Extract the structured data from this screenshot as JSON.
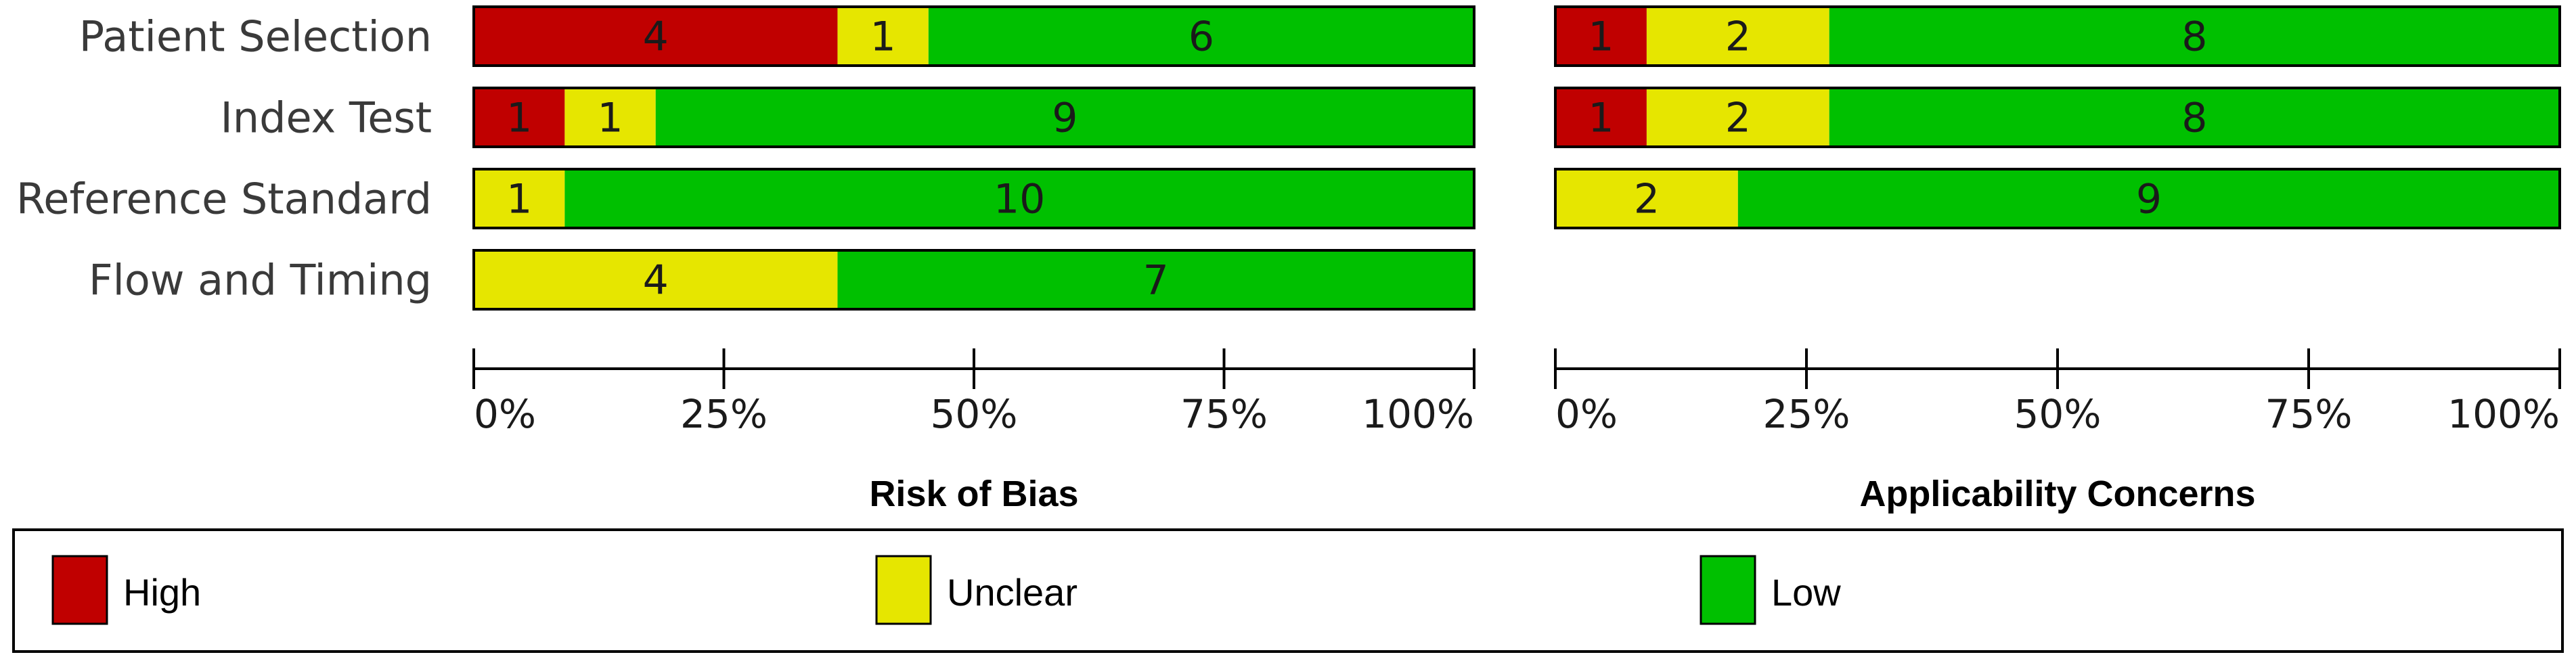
{
  "chart_data": {
    "type": "bar",
    "stacked": true,
    "orientation": "horizontal",
    "categories": [
      "Patient Selection",
      "Index Test",
      "Reference Standard",
      "Flow and Timing"
    ],
    "x_ticks": [
      "0%",
      "25%",
      "50%",
      "75%",
      "100%"
    ],
    "xlim": [
      0,
      100
    ],
    "panels": [
      {
        "title": "Risk of Bias",
        "rows": [
          {
            "category": "Patient Selection",
            "segments": [
              {
                "level": "high",
                "count": 4
              },
              {
                "level": "unclear",
                "count": 1
              },
              {
                "level": "low",
                "count": 6
              }
            ]
          },
          {
            "category": "Index Test",
            "segments": [
              {
                "level": "high",
                "count": 1
              },
              {
                "level": "unclear",
                "count": 1
              },
              {
                "level": "low",
                "count": 9
              }
            ]
          },
          {
            "category": "Reference Standard",
            "segments": [
              {
                "level": "unclear",
                "count": 1
              },
              {
                "level": "low",
                "count": 10
              }
            ]
          },
          {
            "category": "Flow and Timing",
            "segments": [
              {
                "level": "unclear",
                "count": 4
              },
              {
                "level": "low",
                "count": 7
              }
            ]
          }
        ]
      },
      {
        "title": "Applicability Concerns",
        "rows": [
          {
            "category": "Patient Selection",
            "segments": [
              {
                "level": "high",
                "count": 1
              },
              {
                "level": "unclear",
                "count": 2
              },
              {
                "level": "low",
                "count": 8
              }
            ]
          },
          {
            "category": "Index Test",
            "segments": [
              {
                "level": "high",
                "count": 1
              },
              {
                "level": "unclear",
                "count": 2
              },
              {
                "level": "low",
                "count": 8
              }
            ]
          },
          {
            "category": "Reference Standard",
            "segments": [
              {
                "level": "unclear",
                "count": 2
              },
              {
                "level": "low",
                "count": 9
              }
            ]
          }
        ]
      }
    ],
    "legend": {
      "placement": "bottom",
      "items": [
        {
          "level": "high",
          "label": "High",
          "color": "#c00000"
        },
        {
          "level": "unclear",
          "label": "Unclear",
          "color": "#e6e600"
        },
        {
          "level": "low",
          "label": "Low",
          "color": "#00c000"
        }
      ]
    },
    "grid": false
  }
}
